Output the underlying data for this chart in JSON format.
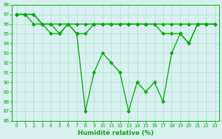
{
  "x": [
    0,
    1,
    2,
    3,
    4,
    5,
    6,
    7,
    8,
    9,
    10,
    11,
    12,
    13,
    14,
    15,
    16,
    17,
    18,
    19,
    20,
    21,
    22,
    23
  ],
  "line1": [
    97,
    97,
    97,
    96,
    96,
    96,
    96,
    96,
    96,
    96,
    96,
    96,
    96,
    96,
    96,
    96,
    96,
    96,
    96,
    96,
    96,
    96,
    96,
    96
  ],
  "line2": [
    97,
    97,
    97,
    96,
    96,
    95,
    96,
    95,
    95,
    96,
    96,
    96,
    96,
    96,
    96,
    96,
    96,
    95,
    95,
    95,
    94,
    96,
    96,
    96
  ],
  "line3": [
    97,
    97,
    96,
    96,
    95,
    95,
    96,
    95,
    87,
    91,
    93,
    92,
    91,
    87,
    90,
    89,
    90,
    88,
    93,
    95,
    94,
    96,
    96,
    96
  ],
  "xlabel": "Humidité relative (%)",
  "ylim": [
    86,
    98
  ],
  "xlim": [
    -0.5,
    23.5
  ],
  "yticks": [
    86,
    87,
    88,
    89,
    90,
    91,
    92,
    93,
    94,
    95,
    96,
    97,
    98
  ],
  "xticks": [
    0,
    1,
    2,
    3,
    4,
    5,
    6,
    7,
    8,
    9,
    10,
    11,
    12,
    13,
    14,
    15,
    16,
    17,
    18,
    19,
    20,
    21,
    22,
    23
  ],
  "line_color": "#00aa00",
  "bg_color": "#d8f0f0",
  "grid_color": "#aaddcc",
  "markersize": 2.5,
  "linewidth": 1.0
}
